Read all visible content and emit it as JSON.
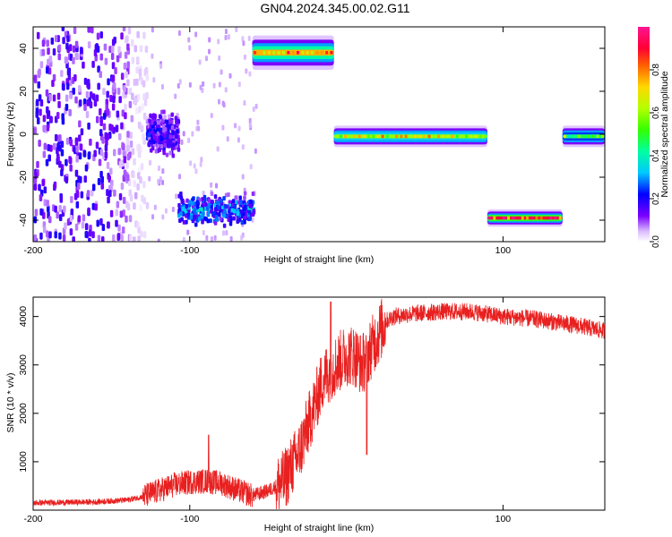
{
  "title": "GN04.2024.345.00.02.G11",
  "chart_data": [
    {
      "type": "heatmap",
      "xlabel": "Height of straight line (km)",
      "ylabel": "Frequency (Hz)",
      "xlim": [
        -200,
        165
      ],
      "ylim": [
        -50,
        50
      ],
      "xticks": [
        "-200",
        "-100",
        "100"
      ],
      "yticks": [
        "-40",
        "-20",
        "0",
        "20",
        "40"
      ],
      "colorbar": {
        "label": "Normalized spectral amplitude",
        "range": [
          0,
          1
        ],
        "ticks": [
          "0.0",
          "0.2",
          "0.4",
          "0.6",
          "0.8"
        ],
        "colors": [
          "#ffffff",
          "#7b00ff",
          "#0000ff",
          "#00c8ff",
          "#00ff66",
          "#a8ff00",
          "#ffd800",
          "#ff6000",
          "#ff0033",
          "#ff1493"
        ]
      },
      "features": [
        {
          "name": "noise field",
          "x": [
            -200,
            -128
          ],
          "y_range": [
            -50,
            50
          ],
          "amplitude": 0.15
        },
        {
          "name": "noise cluster",
          "x": [
            -128,
            -108
          ],
          "y_center": 0,
          "y_halfwidth": 12,
          "amplitude": 0.2
        },
        {
          "name": "cluster",
          "x": [
            -108,
            -60
          ],
          "y_center": -35,
          "y_halfwidth": 9,
          "amplitude": 0.3
        },
        {
          "name": "band",
          "x": [
            -60,
            -8
          ],
          "y_center": 38,
          "y_halfwidth": 4,
          "amplitude": 0.75
        },
        {
          "name": "band",
          "x": [
            -8,
            90
          ],
          "y_center": -1,
          "y_halfwidth": 2.5,
          "amplitude": 0.6
        },
        {
          "name": "band",
          "x": [
            90,
            138
          ],
          "y_center": -39,
          "y_halfwidth": 2,
          "amplitude": 0.9
        },
        {
          "name": "band",
          "x": [
            138,
            165
          ],
          "y_center": -1,
          "y_halfwidth": 2.5,
          "amplitude": 0.45
        }
      ]
    },
    {
      "type": "line",
      "xlabel": "Height of straight line (km)",
      "ylabel": "SNR (10 * v/v)",
      "xlim": [
        -200,
        165
      ],
      "ylim": [
        0,
        4400
      ],
      "xticks": [
        "-200",
        "-100",
        "100"
      ],
      "yticks": [
        "1000",
        "2000",
        "3000",
        "4000"
      ],
      "color": "#e8201f",
      "series": [
        {
          "x": [
            -200,
            -180,
            -160,
            -140,
            -130,
            -120,
            -110,
            -100,
            -90,
            -80,
            -70,
            -60,
            -50,
            -40,
            -35,
            -30,
            -25,
            -20,
            -15,
            -10,
            -5,
            0,
            5,
            10,
            15,
            20,
            25,
            30,
            40,
            60,
            80,
            100,
            120,
            140,
            150,
            165
          ],
          "values": [
            150,
            160,
            170,
            210,
            280,
            400,
            520,
            580,
            600,
            560,
            420,
            300,
            400,
            600,
            900,
            1200,
            1700,
            2200,
            2700,
            2900,
            3050,
            3200,
            3200,
            3000,
            3300,
            3600,
            3900,
            4000,
            4050,
            4100,
            4100,
            4000,
            3950,
            3850,
            3800,
            3700
          ]
        }
      ],
      "spikes": [
        {
          "x": -88,
          "y": 1550
        },
        {
          "x": -10,
          "y": 4300
        },
        {
          "x": 13,
          "y": 1150
        }
      ]
    }
  ]
}
